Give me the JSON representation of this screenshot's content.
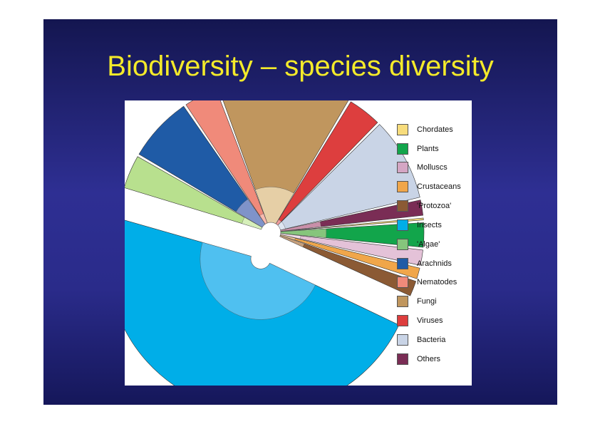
{
  "slide": {
    "title": "Biodiversity – species diversity"
  },
  "chart_data": {
    "type": "pie",
    "legend_position": "right",
    "categories": [
      "Chordates",
      "Plants",
      "Molluscs",
      "Crustaceans",
      "'Protozoa'",
      "Insects",
      "'Algae'",
      "Arachnids",
      "Nematodes",
      "Fungi",
      "Viruses",
      "Bacteria",
      "Others"
    ],
    "legend": [
      {
        "label": "Chordates",
        "color": "#f7dc7c"
      },
      {
        "label": "Plants",
        "color": "#12a54b"
      },
      {
        "label": "Molluscs",
        "color": "#d4a6c4"
      },
      {
        "label": "Crustaceans",
        "color": "#f0a64a"
      },
      {
        "label": "'Protozoa'",
        "color": "#8b5a34"
      },
      {
        "label": "Insects",
        "color": "#00aee8"
      },
      {
        "label": "'Algae'",
        "color": "#86c57c"
      },
      {
        "label": "Arachnids",
        "color": "#1f5ba6"
      },
      {
        "label": "Nematodes",
        "color": "#f08a7a"
      },
      {
        "label": "Fungi",
        "color": "#c0965e"
      },
      {
        "label": "Viruses",
        "color": "#dd3e3e"
      },
      {
        "label": "Bacteria",
        "color": "#c9d4e6"
      },
      {
        "label": "Others",
        "color": "#7a2d55"
      }
    ],
    "slices": [
      {
        "category": "Insects",
        "value": 50,
        "inner_value": 1,
        "color": "#00aee8",
        "inner_color": "#4fc0f0",
        "exploded": true
      },
      {
        "category": "'Algae'",
        "value": 4,
        "inner_value": 0.4,
        "color": "#b8e08e",
        "inner_color": "#d6efba"
      },
      {
        "category": "Arachnids",
        "value": 7.5,
        "inner_value": 0.6,
        "color": "#1f5ba6",
        "inner_color": "#7f93c9"
      },
      {
        "category": "Nematodes",
        "value": 4,
        "inner_value": 0.2,
        "color": "#f08a7a",
        "inner_color": "#f7b9ae"
      },
      {
        "category": "Fungi",
        "value": 15,
        "inner_value": 0.7,
        "color": "#c0965e",
        "inner_color": "#e6cfa6"
      },
      {
        "category": "Viruses",
        "value": 4,
        "inner_value": 0.1,
        "color": "#dd3e3e",
        "inner_color": "#ee9b9b"
      },
      {
        "category": "Bacteria",
        "value": 9.5,
        "inner_value": 0.1,
        "color": "#c9d4e6",
        "inner_color": "#dde5f1"
      },
      {
        "category": "Others",
        "value": 2,
        "inner_value": 0.8,
        "color": "#7a2d55",
        "inner_color": "#c98fa9"
      },
      {
        "category": "Chordates",
        "value": 0.5,
        "inner_value": 0.3,
        "color": "#f7dc7c",
        "inner_color": "#fbeab6"
      },
      {
        "category": "Plants",
        "value": 3,
        "inner_value": 0.9,
        "color": "#12a54b",
        "inner_color": "#86c57c"
      },
      {
        "category": "Molluscs",
        "value": 2,
        "inner_value": 0.4,
        "color": "#e4c2d8",
        "inner_color": "#f1dde9"
      },
      {
        "category": "Crustaceans",
        "value": 1.5,
        "inner_value": 0.3,
        "color": "#f0a64a",
        "inner_color": "#f7cf9c"
      },
      {
        "category": "'Protozoa'",
        "value": 2,
        "inner_value": 0.5,
        "color": "#8b5a34",
        "inner_color": "#c69f7b"
      }
    ]
  }
}
